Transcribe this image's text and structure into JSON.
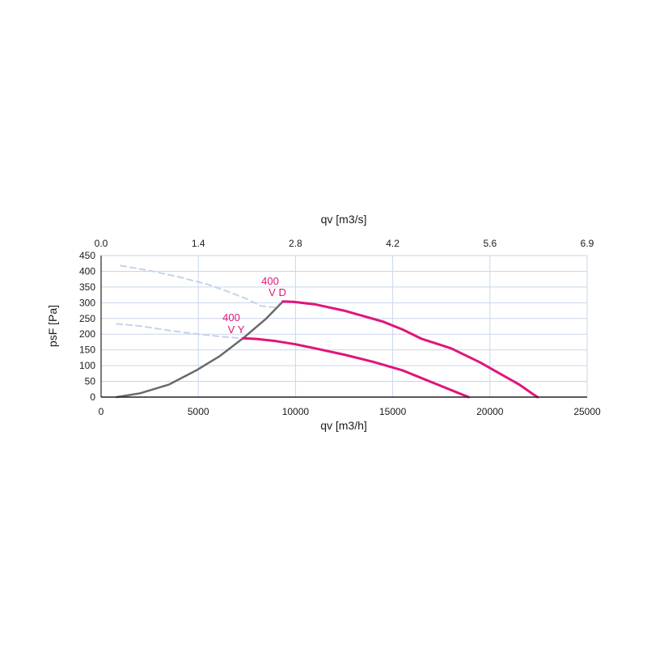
{
  "chart_data": {
    "type": "line",
    "xlabel": "qv [m3/h]",
    "x2label": "qv [m3/s]",
    "ylabel": "psF [Pa]",
    "xlim": [
      0,
      25000
    ],
    "ylim": [
      0,
      450
    ],
    "x_ticks": [
      "0",
      "5000",
      "10000",
      "15000",
      "20000",
      "25000"
    ],
    "x2_ticks": [
      "0.0",
      "1.4",
      "2.8",
      "4.2",
      "5.6",
      "6.9"
    ],
    "y_ticks": [
      "0",
      "50",
      "100",
      "150",
      "200",
      "250",
      "300",
      "350",
      "400",
      "450"
    ],
    "grid": true,
    "colors": {
      "curve": "#e0157a",
      "system_line": "#6a6a6a",
      "stall_dashed": "#c8d2e6",
      "grid": "#c8d6ea"
    },
    "annotations": [
      {
        "line1": "400",
        "line2": "V D",
        "curve": "D"
      },
      {
        "line1": "400",
        "line2": "V Y",
        "curve": "Y"
      }
    ],
    "series": [
      {
        "style": "solid",
        "curve": "D",
        "x": [
          9350,
          9900,
          11000,
          12500,
          14500,
          15500,
          16500,
          18000,
          19500,
          20500,
          21500,
          22200,
          22450
        ],
        "y": [
          304,
          303,
          295,
          275,
          240,
          215,
          185,
          155,
          110,
          75,
          40,
          10,
          0
        ]
      },
      {
        "style": "solid",
        "curve": "Y",
        "x": [
          7300,
          8000,
          9000,
          10000,
          11000,
          12500,
          14000,
          15500,
          16500,
          17500,
          18300,
          18900
        ],
        "y": [
          187,
          185,
          178,
          168,
          155,
          135,
          112,
          85,
          60,
          35,
          15,
          0
        ]
      },
      {
        "style": "system",
        "x": [
          800,
          2000,
          3500,
          4900,
          6100,
          7300,
          8500,
          9350
        ],
        "y": [
          0,
          12,
          40,
          85,
          130,
          187,
          250,
          304
        ]
      },
      {
        "style": "dashed",
        "x": [
          1000,
          2500,
          4000,
          5500,
          6500,
          7500,
          8200,
          9000,
          9350
        ],
        "y": [
          418,
          402,
          382,
          358,
          336,
          312,
          290,
          285,
          304
        ]
      },
      {
        "style": "dashed",
        "x": [
          800,
          2000,
          3500,
          5000,
          6200,
          7300
        ],
        "y": [
          233,
          226,
          212,
          200,
          192,
          187
        ]
      }
    ]
  }
}
